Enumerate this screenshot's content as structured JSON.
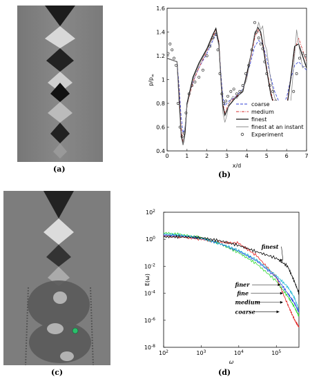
{
  "captions": {
    "a": "(a)",
    "b": "(b)",
    "c": "(c)",
    "d": "(d)"
  },
  "chart_data": [
    {
      "panel": "b",
      "type": "line",
      "xlabel": "x/d",
      "ylabel": "p/p",
      "ylabel_sub": "∞",
      "xlim": [
        0,
        7
      ],
      "ylim": [
        0.4,
        1.6
      ],
      "xticks": [
        0,
        1,
        2,
        3,
        4,
        5,
        6,
        7
      ],
      "yticks": [
        0.4,
        0.6,
        0.8,
        1,
        1.2,
        1.4,
        1.6
      ],
      "legend_position": "right",
      "series": [
        {
          "name": "coarse",
          "style": "dashed",
          "color": "#2b3bd6",
          "x": [
            0,
            0.5,
            0.6,
            0.7,
            0.8,
            0.9,
            1.0,
            1.3,
            1.6,
            2.0,
            2.3,
            2.45,
            2.6,
            2.7,
            2.8,
            2.9,
            3.1,
            3.4,
            3.8,
            4.2,
            4.4,
            4.6,
            4.8,
            5.0,
            5.2,
            5.4,
            5.6,
            5.8,
            6.0,
            6.2,
            6.4,
            6.6,
            7.0
          ],
          "y": [
            1.18,
            1.15,
            0.95,
            0.7,
            0.55,
            0.6,
            0.8,
            0.98,
            1.1,
            1.22,
            1.33,
            1.38,
            1.3,
            1.05,
            0.85,
            0.78,
            0.82,
            0.85,
            0.92,
            1.15,
            1.28,
            1.33,
            1.3,
            1.18,
            1.02,
            0.9,
            0.82,
            0.78,
            0.85,
            1.0,
            1.12,
            1.15,
            1.08
          ]
        },
        {
          "name": "medium",
          "style": "dashdot",
          "color": "#d62a2a",
          "x": [
            0,
            0.5,
            0.6,
            0.7,
            0.8,
            0.9,
            1.0,
            1.3,
            1.6,
            2.0,
            2.3,
            2.45,
            2.6,
            2.7,
            2.8,
            2.9,
            3.1,
            3.4,
            3.8,
            4.2,
            4.4,
            4.55,
            4.7,
            4.8,
            5.0,
            5.2,
            5.4,
            5.6,
            5.8,
            6.0,
            6.2,
            6.4,
            6.6,
            7.0
          ],
          "y": [
            1.18,
            1.15,
            0.9,
            0.6,
            0.47,
            0.55,
            0.78,
            0.98,
            1.1,
            1.24,
            1.36,
            1.42,
            1.32,
            1.02,
            0.8,
            0.72,
            0.8,
            0.85,
            0.9,
            1.18,
            1.35,
            1.42,
            1.38,
            1.32,
            1.1,
            0.9,
            0.78,
            0.72,
            0.72,
            0.78,
            1.0,
            1.25,
            1.35,
            1.15
          ]
        },
        {
          "name": "finest",
          "style": "solid",
          "color": "#111111",
          "x": [
            0,
            0.5,
            0.6,
            0.7,
            0.8,
            0.9,
            1.0,
            1.3,
            1.6,
            2.0,
            2.3,
            2.45,
            2.6,
            2.7,
            2.8,
            2.9,
            3.1,
            3.4,
            3.8,
            4.2,
            4.4,
            4.55,
            4.7,
            4.8,
            5.0,
            5.2,
            5.4,
            5.6,
            5.8,
            6.0,
            6.2,
            6.4,
            6.6,
            7.0
          ],
          "y": [
            1.18,
            1.15,
            0.85,
            0.55,
            0.45,
            0.55,
            0.8,
            1.02,
            1.14,
            1.26,
            1.38,
            1.43,
            1.3,
            1.0,
            0.78,
            0.7,
            0.78,
            0.84,
            0.9,
            1.2,
            1.38,
            1.44,
            1.4,
            1.3,
            1.08,
            0.88,
            0.76,
            0.7,
            0.68,
            0.75,
            1.0,
            1.28,
            1.3,
            1.1
          ]
        },
        {
          "name": "finest at an instant",
          "style": "solid",
          "color": "#8a8a8a",
          "x": [
            0,
            0.5,
            0.6,
            0.7,
            0.8,
            0.9,
            1.0,
            1.3,
            1.6,
            2.0,
            2.3,
            2.45,
            2.6,
            2.7,
            2.8,
            2.9,
            3.0,
            3.1,
            3.3,
            3.5,
            3.8,
            4.0,
            4.2,
            4.4,
            4.5,
            4.6,
            4.7,
            4.8,
            4.9,
            5.0,
            5.2,
            5.4,
            5.6,
            5.8,
            6.0,
            6.1,
            6.2,
            6.4,
            6.5,
            6.6,
            6.8,
            7.0
          ],
          "y": [
            1.18,
            1.15,
            0.8,
            0.52,
            0.45,
            0.6,
            0.78,
            1.0,
            1.12,
            1.25,
            1.35,
            1.4,
            1.28,
            0.98,
            0.72,
            0.64,
            0.7,
            0.8,
            0.86,
            0.84,
            0.92,
            1.0,
            1.2,
            1.4,
            1.42,
            1.48,
            1.42,
            1.45,
            1.3,
            1.25,
            1.0,
            0.85,
            0.78,
            0.68,
            0.62,
            0.7,
            0.8,
            1.2,
            1.42,
            1.3,
            1.1,
            1.12
          ]
        },
        {
          "name": "Experiment",
          "style": "markers",
          "color": "#333333",
          "x": [
            0.05,
            0.15,
            0.25,
            0.35,
            0.45,
            0.55,
            0.65,
            0.75,
            0.85,
            0.95,
            1.1,
            1.25,
            1.4,
            1.6,
            1.8,
            2.0,
            2.15,
            2.3,
            2.45,
            2.55,
            2.65,
            2.75,
            2.85,
            2.95,
            3.05,
            3.2,
            3.35,
            3.5,
            3.65,
            3.8,
            3.95,
            4.1,
            4.25,
            4.4,
            4.5,
            4.6,
            4.7,
            4.8,
            4.9,
            5.0,
            5.15,
            5.3,
            5.45,
            5.6,
            5.75,
            5.9,
            6.05,
            6.2,
            6.35,
            6.5,
            6.65,
            6.8,
            6.95
          ],
          "y": [
            1.22,
            1.3,
            1.25,
            1.18,
            1.12,
            0.8,
            0.6,
            0.52,
            0.55,
            0.72,
            0.88,
            0.95,
            0.98,
            1.02,
            1.08,
            1.2,
            1.28,
            1.35,
            1.38,
            1.25,
            1.05,
            0.88,
            0.8,
            0.82,
            0.86,
            0.9,
            0.92,
            0.88,
            0.9,
            0.95,
            1.05,
            1.12,
            1.25,
            1.48,
            1.4,
            1.35,
            1.3,
            1.26,
            1.15,
            1.05,
            0.95,
            0.9,
            0.82,
            0.78,
            0.76,
            0.74,
            0.75,
            0.78,
            0.9,
            1.05,
            1.18,
            1.22,
            1.2
          ]
        }
      ]
    },
    {
      "panel": "d",
      "type": "line",
      "xlabel": "ω",
      "ylabel": "E(ω)",
      "xscale": "log",
      "yscale": "log",
      "xlim": [
        100,
        400000
      ],
      "ylim": [
        1e-08,
        100
      ],
      "xticks": [
        {
          "v": 100,
          "e": "2"
        },
        {
          "v": 1000,
          "e": "3"
        },
        {
          "v": 10000,
          "e": "4"
        },
        {
          "v": 100000,
          "e": "5"
        }
      ],
      "yticks": [
        {
          "v": 1e-08,
          "e": "-8"
        },
        {
          "v": 1e-06,
          "e": "-6"
        },
        {
          "v": 0.0001,
          "e": "-4"
        },
        {
          "v": 0.01,
          "e": "-2"
        },
        {
          "v": 1,
          "e": "0"
        },
        {
          "v": 100,
          "e": "2"
        }
      ],
      "annotations": [
        {
          "text": "finest",
          "x": 40000,
          "y": 0.2,
          "ax": 150000,
          "ay": 0.02
        },
        {
          "text": "finer",
          "x": 8000,
          "y": 0.0003,
          "ax": 130000,
          "ay": 0.0003
        },
        {
          "text": "fine",
          "x": 9000,
          "y": 7e-05,
          "ax": 150000,
          "ay": 7e-05
        },
        {
          "text": "medium",
          "x": 8000,
          "y": 1.5e-05,
          "ax": 150000,
          "ay": 1.5e-05
        },
        {
          "text": "coarse",
          "x": 8000,
          "y": 3e-06,
          "ax": 120000,
          "ay": 3e-06
        }
      ],
      "series": [
        {
          "name": "finest",
          "color": "#000000",
          "x": [
            100,
            300,
            1000,
            3000,
            10000,
            30000,
            100000,
            200000,
            300000,
            400000
          ],
          "y": [
            1.5,
            1.5,
            1.3,
            0.8,
            0.35,
            0.12,
            0.04,
            0.01,
            0.0008,
            0.0001
          ]
        },
        {
          "name": "finer",
          "color": "#1fb7d1",
          "x": [
            100,
            300,
            1000,
            3000,
            10000,
            30000,
            100000,
            200000,
            300000,
            400000
          ],
          "y": [
            2.5,
            2.0,
            1.2,
            0.5,
            0.15,
            0.03,
            0.002,
            0.0003,
            5e-05,
            6e-06
          ]
        },
        {
          "name": "fine",
          "color": "#1a3be0",
          "x": [
            100,
            300,
            1000,
            3000,
            10000,
            30000,
            100000,
            200000,
            300000,
            400000
          ],
          "y": [
            2.0,
            1.8,
            1.2,
            0.5,
            0.13,
            0.025,
            0.0015,
            0.0001,
            2e-05,
            4e-06
          ]
        },
        {
          "name": "medium",
          "color": "#2bd82b",
          "x": [
            100,
            300,
            1000,
            3000,
            10000,
            30000,
            100000,
            200000,
            300000,
            400000
          ],
          "y": [
            3.0,
            2.2,
            1.3,
            0.5,
            0.1,
            0.015,
            0.0008,
            6e-05,
            1e-05,
            2e-06
          ]
        },
        {
          "name": "coarse",
          "color": "#e01a1a",
          "x": [
            100,
            300,
            1000,
            3000,
            10000,
            30000,
            100000,
            200000,
            300000,
            400000
          ],
          "y": [
            1.8,
            1.5,
            1.0,
            0.6,
            0.5,
            0.06,
            0.0015,
            1.5e-05,
            1.2e-06,
            3e-07
          ]
        }
      ]
    }
  ]
}
